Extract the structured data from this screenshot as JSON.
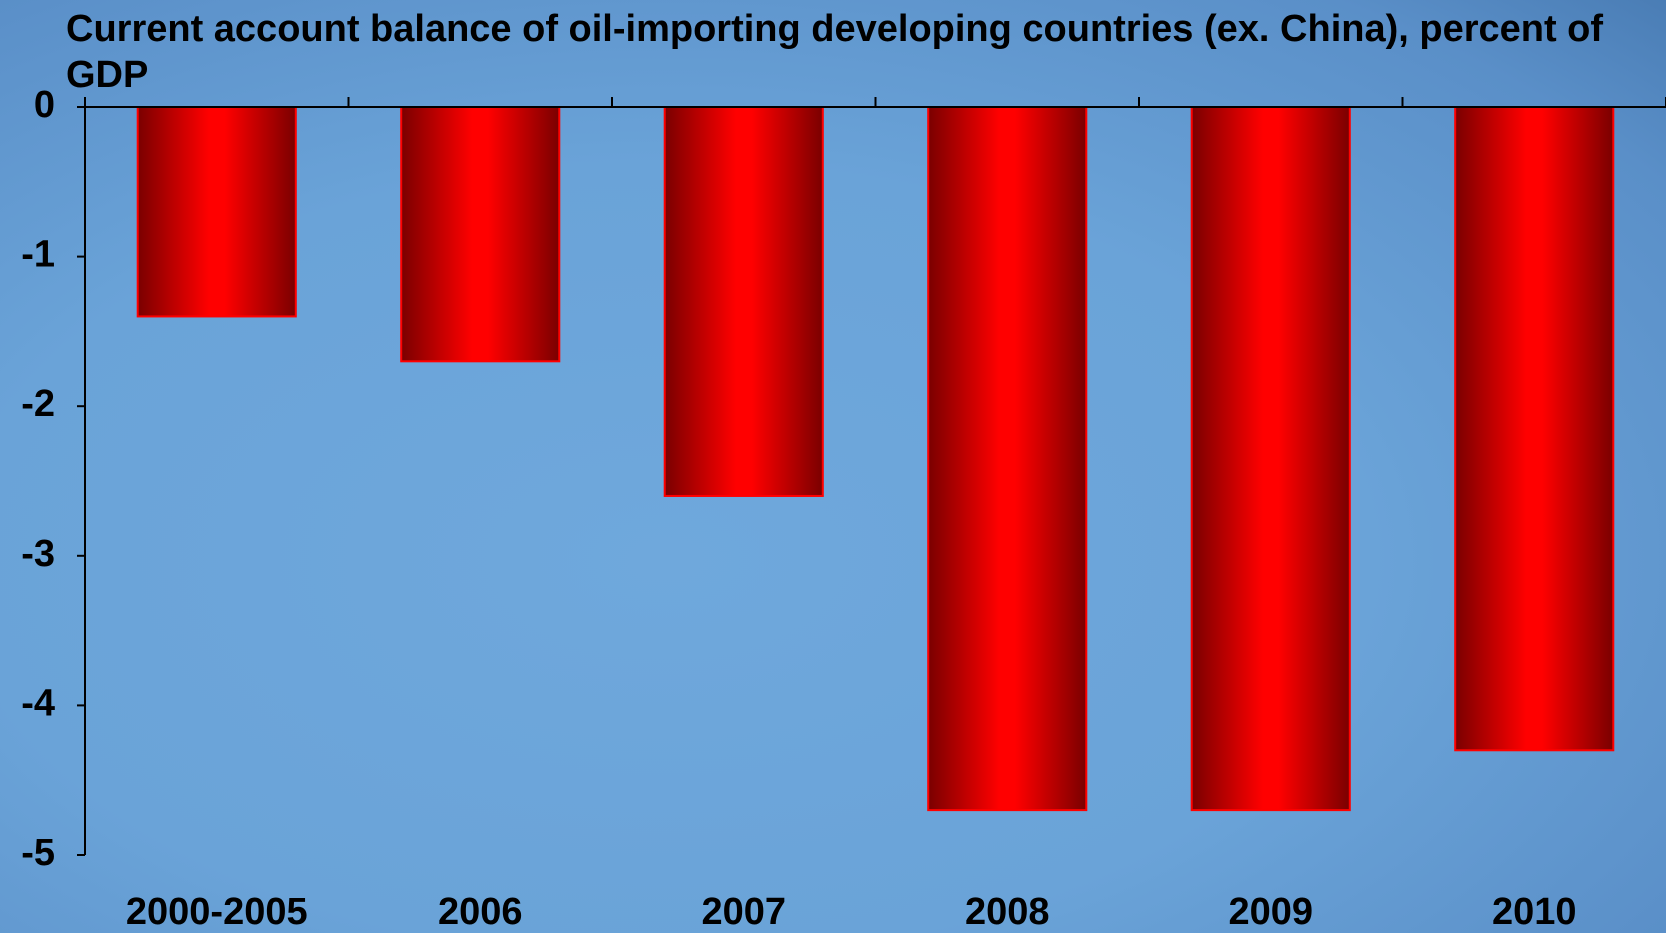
{
  "chart_data": {
    "type": "bar",
    "title": "Current account balance of oil-importing developing countries (ex. China), percent of GDP",
    "categories": [
      "2000-2005",
      "2006",
      "2007",
      "2008",
      "2009",
      "2010"
    ],
    "values": [
      -1.4,
      -1.7,
      -2.6,
      -4.7,
      -4.7,
      -4.3
    ],
    "color": "#ff0000",
    "ylim": [
      -5,
      0
    ],
    "yticks": [
      0,
      -1,
      -2,
      -3,
      -4,
      -5
    ],
    "grid": false
  }
}
